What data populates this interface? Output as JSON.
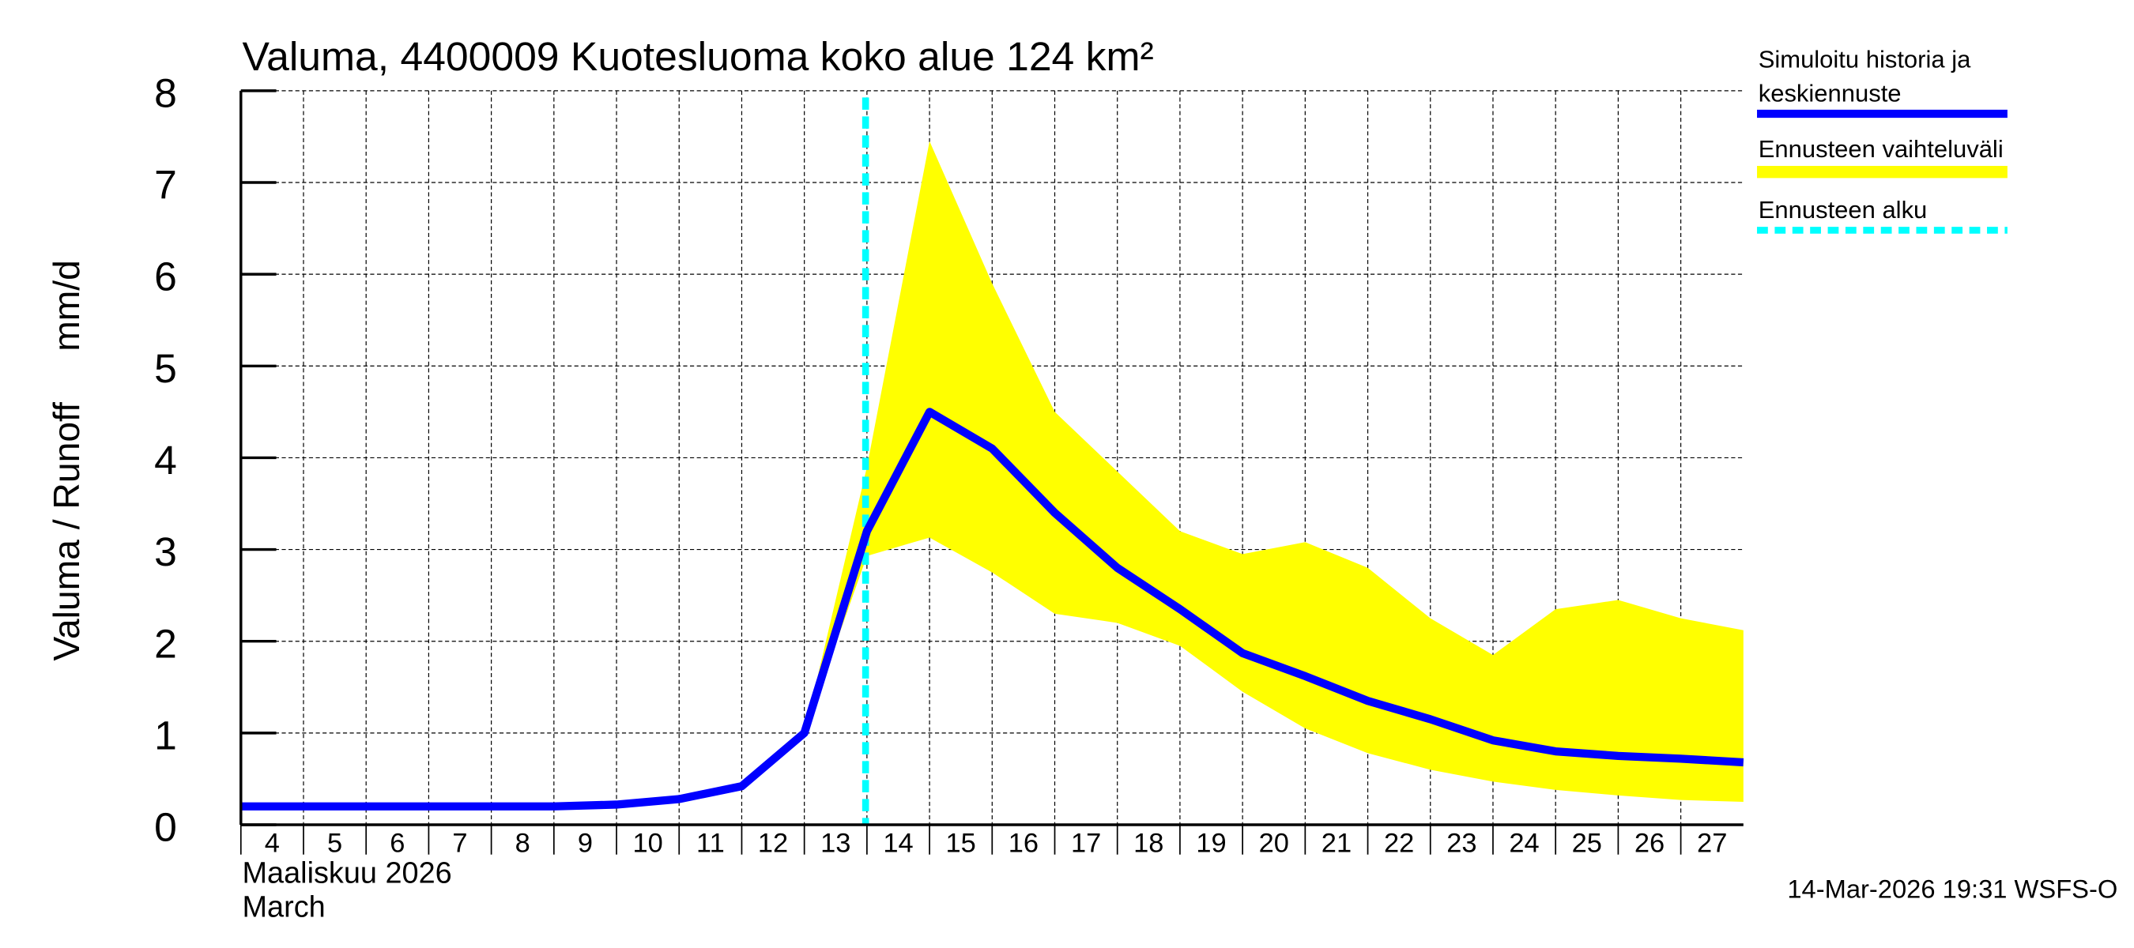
{
  "chart_data": {
    "type": "line",
    "title": "Valuma, 4400009 Kuotesluoma koko alue 124 km²",
    "ylabel": "Valuma / Runoff     mm/d",
    "xlabel_line1": "Maaliskuu 2026",
    "xlabel_line2": "March",
    "ylim": [
      0,
      8
    ],
    "xlim": [
      4,
      28
    ],
    "yticks": [
      0,
      1,
      2,
      3,
      4,
      5,
      6,
      7,
      8
    ],
    "xticks": [
      4,
      5,
      6,
      7,
      8,
      9,
      10,
      11,
      12,
      13,
      14,
      15,
      16,
      17,
      18,
      19,
      20,
      21,
      22,
      23,
      24,
      25,
      26,
      27
    ],
    "grid": true,
    "legend_position": "right",
    "forecast_start": 14,
    "series": [
      {
        "name": "Simuloitu historia ja keskiennuste",
        "color": "#0000ff",
        "x": [
          4,
          5,
          6,
          7,
          8,
          9,
          10,
          11,
          12,
          13,
          14,
          15,
          16,
          17,
          18,
          19,
          20,
          21,
          22,
          23,
          24,
          25,
          26,
          27,
          28
        ],
        "y": [
          0.2,
          0.2,
          0.2,
          0.2,
          0.2,
          0.2,
          0.22,
          0.28,
          0.42,
          1.0,
          3.2,
          4.5,
          4.1,
          3.4,
          2.8,
          2.35,
          1.87,
          1.62,
          1.35,
          1.15,
          0.92,
          0.8,
          0.75,
          0.72,
          0.68
        ]
      }
    ],
    "band": {
      "name": "Ennusteen vaihteluväli",
      "color": "#ffff00",
      "x": [
        13,
        14,
        15,
        16,
        17,
        18,
        19,
        20,
        21,
        22,
        23,
        24,
        25,
        26,
        27,
        28
      ],
      "upper": [
        1.0,
        3.9,
        7.45,
        5.9,
        4.5,
        3.85,
        3.2,
        2.95,
        3.08,
        2.8,
        2.25,
        1.85,
        2.35,
        2.45,
        2.25,
        2.12
      ],
      "lower": [
        1.0,
        2.93,
        3.13,
        2.75,
        2.3,
        2.2,
        1.95,
        1.45,
        1.05,
        0.78,
        0.6,
        0.47,
        0.38,
        0.32,
        0.27,
        0.25
      ]
    },
    "legend": [
      {
        "label_line1": "Simuloitu historia ja",
        "label_line2": "keskiennuste",
        "color": "#0000ff",
        "style": "solid"
      },
      {
        "label_line1": "Ennusteen vaihteluväli",
        "color": "#ffff00",
        "style": "band"
      },
      {
        "label_line1": "Ennusteen alku",
        "color": "#00ffff",
        "style": "dashed"
      }
    ],
    "footer": "14-Mar-2026 19:31 WSFS-O"
  }
}
